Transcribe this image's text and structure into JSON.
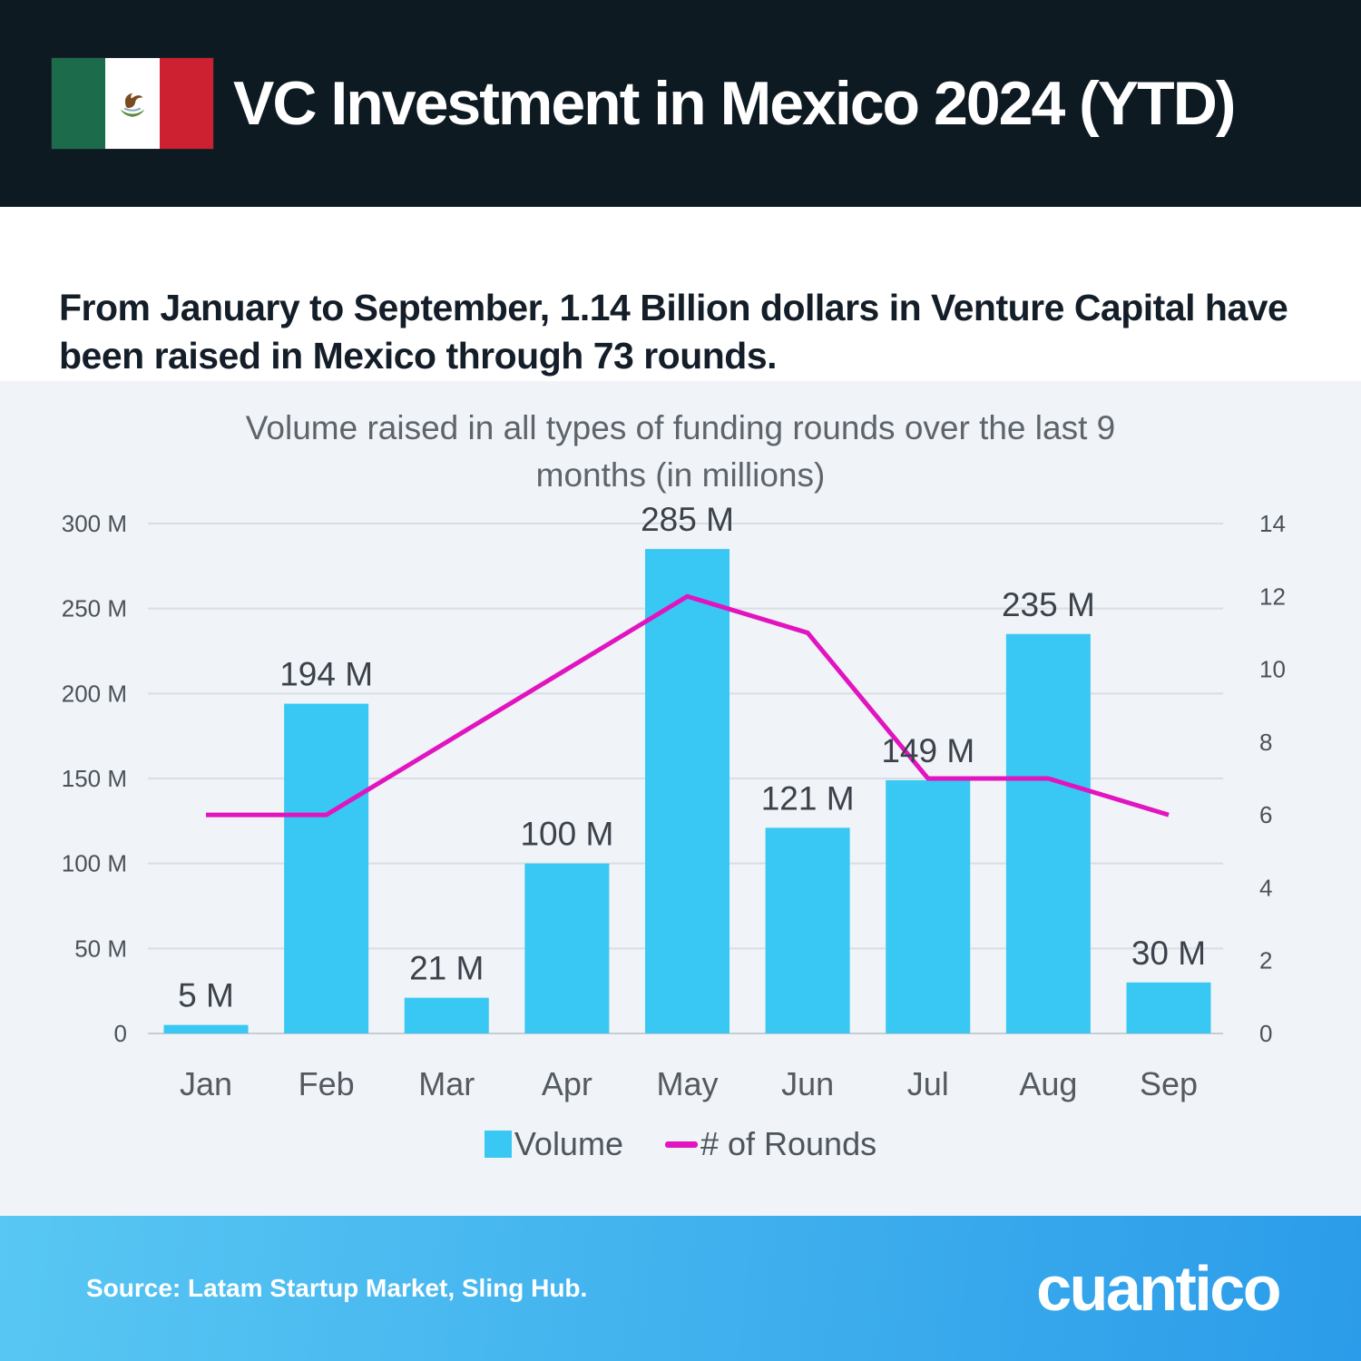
{
  "header": {
    "title": "VC Investment in Mexico 2024 (YTD)",
    "flag_icon": "mexico-flag"
  },
  "subtitle": "From January to September, 1.14 Billion dollars in Venture Capital have been raised in Mexico through 73 rounds.",
  "chart_data": {
    "type": "bar+line",
    "title": "Volume raised in all types of funding rounds over the last 9 months (in millions)",
    "categories": [
      "Jan",
      "Feb",
      "Mar",
      "Apr",
      "May",
      "Jun",
      "Jul",
      "Aug",
      "Sep"
    ],
    "series": [
      {
        "name": "Volume",
        "type": "bar",
        "axis": "left",
        "values": [
          5,
          194,
          21,
          100,
          285,
          121,
          149,
          235,
          30
        ],
        "labels": [
          "5 M",
          "194 M",
          "21 M",
          "100 M",
          "285 M",
          "121 M",
          "149 M",
          "235 M",
          "30 M"
        ],
        "color": "#38c8f3"
      },
      {
        "name": "# of Rounds",
        "type": "line",
        "axis": "right",
        "values": [
          6,
          6,
          8,
          10,
          12,
          11,
          7,
          7,
          6
        ],
        "color": "#e114c0"
      }
    ],
    "left_axis": {
      "min": 0,
      "max": 300,
      "ticks": [
        "0",
        "50 M",
        "100 M",
        "150 M",
        "200 M",
        "250 M",
        "300 M"
      ]
    },
    "right_axis": {
      "min": 0,
      "max": 14,
      "ticks": [
        "0",
        "2",
        "4",
        "6",
        "8",
        "10",
        "12",
        "14"
      ]
    },
    "grid": "horizontal",
    "legend_position": "bottom"
  },
  "footer": {
    "source": "Source: Latam Startup Market, Sling Hub.",
    "logo": "cuantico"
  },
  "colors": {
    "bar_cyan": "#38c8f3",
    "line_magenta": "#e114c0",
    "header_bg": "#0d1a22",
    "chart_bg": "#f0f3f7",
    "footer_gradient_left": "#58c7f3",
    "footer_gradient_right": "#2b9ce9"
  }
}
